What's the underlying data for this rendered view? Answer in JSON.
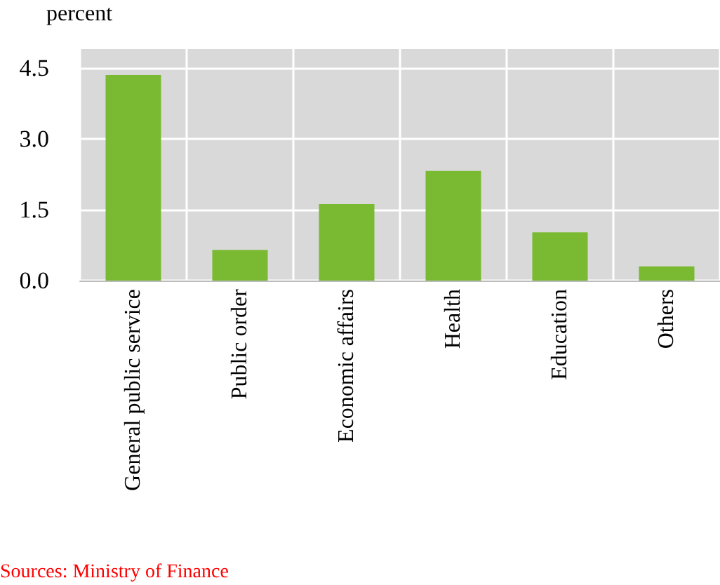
{
  "chart_data": {
    "type": "bar",
    "ylabel": "percent",
    "categories": [
      "General public service",
      "Public order",
      "Economic affairs",
      "Health",
      "Education",
      "Others"
    ],
    "values": [
      4.35,
      0.65,
      1.62,
      2.32,
      1.02,
      0.3
    ],
    "color": "#7aba33",
    "ylim": [
      0,
      4.9
    ],
    "yticks": [
      {
        "value": 0,
        "label": "0.0"
      },
      {
        "value": 1.5,
        "label": "1.5"
      },
      {
        "value": 3,
        "label": "3.0"
      },
      {
        "value": 4.5,
        "label": "4.5"
      }
    ],
    "grid": true,
    "annotations": [
      "Sources: Ministry of Finance"
    ]
  }
}
